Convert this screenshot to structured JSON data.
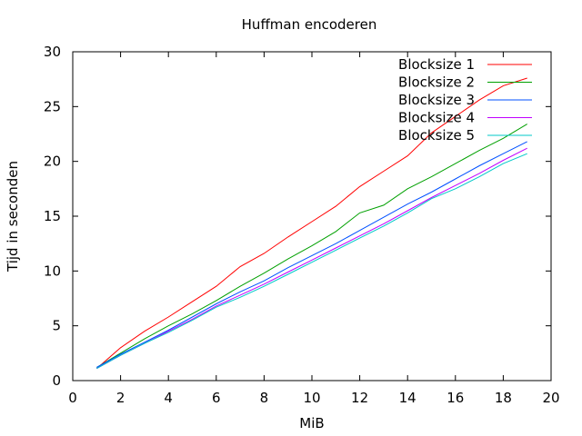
{
  "chart_data": {
    "type": "line",
    "title": "Huffman encoderen",
    "xlabel": "MiB",
    "ylabel": "Tijd in seconden",
    "xlim": [
      0,
      20
    ],
    "ylim": [
      0,
      30
    ],
    "xticks": [
      0,
      2,
      4,
      6,
      8,
      10,
      12,
      14,
      16,
      18,
      20
    ],
    "yticks": [
      0,
      5,
      10,
      15,
      20,
      25,
      30
    ],
    "grid": false,
    "legend_position": "top-right",
    "x": [
      1,
      2,
      3,
      4,
      5,
      6,
      7,
      8,
      9,
      10,
      11,
      12,
      13,
      14,
      15,
      16,
      17,
      18,
      19
    ],
    "series": [
      {
        "name": "Blocksize 1",
        "color": "#ff0000",
        "values": [
          1.1,
          3.0,
          4.5,
          5.8,
          7.2,
          8.6,
          10.4,
          11.6,
          13.1,
          14.5,
          15.9,
          17.7,
          19.1,
          20.5,
          22.6,
          24.1,
          25.6,
          26.9,
          27.6
        ]
      },
      {
        "name": "Blocksize 2",
        "color": "#00a000",
        "values": [
          1.2,
          2.5,
          3.8,
          5.0,
          6.1,
          7.3,
          8.6,
          9.8,
          11.1,
          12.3,
          13.6,
          15.3,
          16.0,
          17.5,
          18.6,
          19.8,
          21.0,
          22.1,
          23.4
        ]
      },
      {
        "name": "Blocksize 3",
        "color": "#0050ff",
        "values": [
          1.2,
          2.4,
          3.5,
          4.6,
          5.8,
          7.0,
          8.1,
          9.1,
          10.3,
          11.4,
          12.5,
          13.7,
          14.9,
          16.1,
          17.2,
          18.4,
          19.6,
          20.7,
          21.8
        ]
      },
      {
        "name": "Blocksize 4",
        "color": "#c000ff",
        "values": [
          1.1,
          2.3,
          3.4,
          4.5,
          5.6,
          6.8,
          7.8,
          8.8,
          9.9,
          11.0,
          12.1,
          13.2,
          14.3,
          15.5,
          16.7,
          17.8,
          18.9,
          20.1,
          21.2
        ]
      },
      {
        "name": "Blocksize 5",
        "color": "#00c8c8",
        "values": [
          1.1,
          2.3,
          3.4,
          4.4,
          5.5,
          6.7,
          7.6,
          8.6,
          9.7,
          10.8,
          11.9,
          13.0,
          14.1,
          15.3,
          16.6,
          17.5,
          18.6,
          19.8,
          20.7
        ]
      }
    ]
  }
}
